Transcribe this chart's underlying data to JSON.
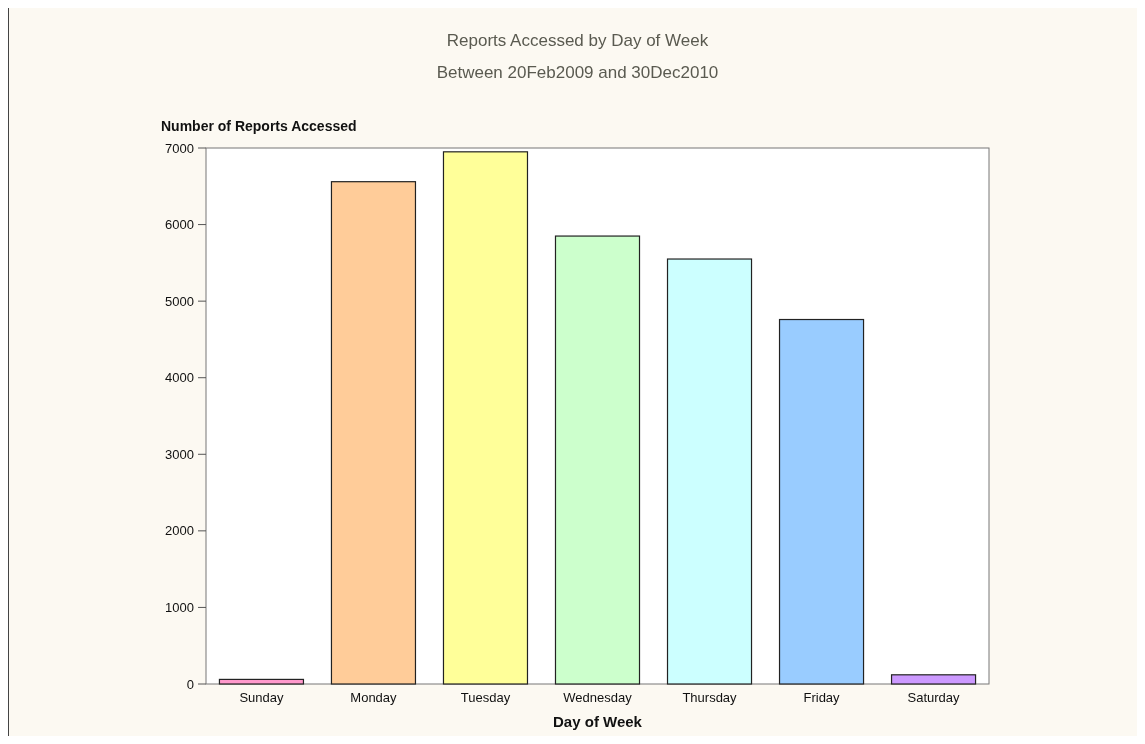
{
  "chart_data": {
    "type": "bar",
    "title": "Reports Accessed by Day of Week",
    "subtitle": "Between 20Feb2009 and 30Dec2010",
    "xlabel": "Day of Week",
    "ylabel": "Number of Reports Accessed",
    "categories": [
      "Sunday",
      "Monday",
      "Tuesday",
      "Wednesday",
      "Thursday",
      "Friday",
      "Saturday"
    ],
    "values": [
      60,
      6560,
      6950,
      5850,
      5550,
      4760,
      120
    ],
    "colors": [
      "#ff99cc",
      "#ffcc99",
      "#ffff99",
      "#ccffcc",
      "#ccffff",
      "#99ccff",
      "#cc99ff"
    ],
    "ylim": [
      0,
      7000
    ],
    "yticks": [
      0,
      1000,
      2000,
      3000,
      4000,
      5000,
      6000,
      7000
    ]
  }
}
